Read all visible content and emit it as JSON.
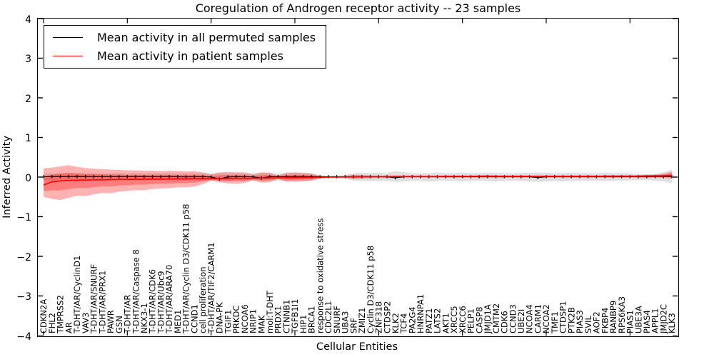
{
  "figure": {
    "title": "Coregulation of Androgen receptor activity -- 23 samples",
    "xlabel": "Cellular Entities",
    "ylabel": "Inferred Activity",
    "legend": {
      "permuted": {
        "label": "Mean activity in all permuted samples",
        "color": "#000000"
      },
      "patient": {
        "label": "Mean activity in patient samples",
        "color": "#ff0000"
      }
    }
  },
  "chart_data": {
    "type": "line",
    "title": "Coregulation of Androgen receptor activity -- 23 samples",
    "xlabel": "Cellular Entities",
    "ylabel": "Inferred Activity",
    "ylim": [
      -4,
      4
    ],
    "yticks": [
      -4,
      -3,
      -2,
      -1,
      0,
      1,
      2,
      3,
      4
    ],
    "grid": false,
    "legend_position": "upper left",
    "band_colors": {
      "permuted": "rgba(110,110,110,0.22)",
      "patient": "rgba(255,0,0,0.30)"
    },
    "categories": [
      "CDKN2A",
      "FHL2",
      "TMPRSS2",
      "AR",
      "T-DHT/AR/CyclinD1",
      "VAV3",
      "T-DHT/AR/SNURF",
      "T-DHT/AR/PRX1",
      "PAWR",
      "GSN",
      "T-DHT/AR",
      "T-DHT/AR/Caspase 8",
      "NKX3-1",
      "T-DHT/AR/CDK6",
      "T-DHT/AR/Ubc9",
      "T-DHT/AR/ARA70",
      "MED1",
      "T-DHT/AR/Cyclin D3/CDK11 p58",
      "CCND1",
      "cell proliferation",
      "T-DHT/AR/TIF2/CARM1",
      "DNA-PK",
      "TGIF1",
      "PRKDC",
      "NCOA6",
      "NRIP1",
      "MAK",
      "mol:T-DHT",
      "PRDX1",
      "CTNNB1",
      "TGFB1I1",
      "HIP1",
      "BRCA1",
      "response to oxidative stress",
      "CDC2L1",
      "SNURF",
      "UBA3",
      "SRF",
      "ZMIZ1",
      "Cyclin D3/CDK11 p58",
      "ZNF318",
      "CTDSP2",
      "KLK2",
      "TCF4",
      "PA2G4",
      "HNRNPA1",
      "PATZ1",
      "LATS2",
      "AKT1",
      "XRCC5",
      "XRCC6",
      "PELP1",
      "CASP8",
      "JMJD1A",
      "CMTM2",
      "CDK6",
      "CCND3",
      "UBE2I",
      "NCOA4",
      "CARM1",
      "NCOA2",
      "TMF1",
      "CTDSP1",
      "PTK2B",
      "PIAS3",
      "SVIL",
      "AOF2",
      "FKBP4",
      "RANBP9",
      "RPS6KA3",
      "PIAS1",
      "UBE3A",
      "PIAS4",
      "APPL1",
      "JMJD2C",
      "KLK3"
    ],
    "series": [
      {
        "name": "Mean activity in all permuted samples",
        "color": "#000000",
        "values": [
          0.01,
          0.012,
          0.012,
          0.012,
          0.015,
          0.012,
          0.012,
          0.01,
          0.012,
          0.01,
          0.012,
          0.01,
          0.012,
          0.01,
          0.01,
          0.012,
          0.01,
          0.008,
          0.01,
          0.012,
          0.005,
          -0.05,
          0.005,
          0.012,
          0.01,
          0.008,
          -0.025,
          0.01,
          0.012,
          0.01,
          0.01,
          0.012,
          0.01,
          0.008,
          0.01,
          0.01,
          0.012,
          0.01,
          0.01,
          0.012,
          0.01,
          0.01,
          -0.02,
          0.01,
          0.012,
          0.01,
          0.01,
          0.012,
          0.01,
          0.01,
          0.012,
          0.01,
          0.01,
          0.012,
          0.01,
          0.01,
          0.012,
          0.01,
          0.01,
          -0.015,
          0.01,
          0.012,
          0.01,
          0.01,
          0.012,
          0.01,
          0.01,
          0.012,
          0.01,
          0.01,
          0.012,
          0.01,
          0.01,
          0.012,
          0.01,
          0.01
        ],
        "band_upper": [
          0.1,
          0.09,
          0.1,
          0.09,
          0.1,
          0.09,
          0.1,
          0.09,
          0.09,
          0.1,
          0.09,
          0.1,
          0.09,
          0.1,
          0.09,
          0.1,
          0.09,
          0.1,
          0.09,
          0.1,
          0.08,
          0.1,
          0.09,
          0.1,
          0.09,
          0.1,
          0.11,
          0.1,
          0.09,
          0.1,
          0.11,
          0.1,
          0.09,
          0.05,
          0.02,
          0.02,
          0.04,
          0.1,
          0.11,
          0.1,
          0.11,
          0.1,
          0.15,
          0.12,
          0.1,
          0.09,
          0.1,
          0.11,
          0.1,
          0.1,
          0.11,
          0.1,
          0.1,
          0.11,
          0.1,
          0.1,
          0.09,
          0.1,
          0.11,
          0.12,
          0.11,
          0.1,
          0.1,
          0.11,
          0.1,
          0.1,
          0.09,
          0.11,
          0.1,
          0.1,
          0.09,
          0.08,
          0.07,
          0.08,
          0.12,
          0.19
        ],
        "band_lower": [
          -0.08,
          -0.09,
          -0.08,
          -0.09,
          -0.09,
          -0.08,
          -0.09,
          -0.08,
          -0.09,
          -0.08,
          -0.09,
          -0.09,
          -0.08,
          -0.09,
          -0.09,
          -0.08,
          -0.09,
          -0.09,
          -0.08,
          -0.09,
          -0.09,
          -0.1,
          -0.09,
          -0.08,
          -0.09,
          -0.09,
          -0.1,
          -0.09,
          -0.09,
          -0.1,
          -0.09,
          -0.1,
          -0.09,
          -0.05,
          -0.02,
          -0.02,
          -0.04,
          -0.09,
          -0.1,
          -0.1,
          -0.09,
          -0.1,
          -0.12,
          -0.11,
          -0.1,
          -0.1,
          -0.11,
          -0.1,
          -0.09,
          -0.1,
          -0.11,
          -0.1,
          -0.09,
          -0.1,
          -0.11,
          -0.1,
          -0.09,
          -0.1,
          -0.11,
          -0.12,
          -0.11,
          -0.1,
          -0.11,
          -0.1,
          -0.1,
          -0.09,
          -0.1,
          -0.1,
          -0.1,
          -0.09,
          -0.08,
          -0.08,
          -0.07,
          -0.09,
          -0.1,
          -0.16
        ]
      },
      {
        "name": "Mean activity in patient samples",
        "color": "#ff0000",
        "values": [
          -0.2,
          -0.12,
          -0.095,
          -0.085,
          -0.08,
          -0.075,
          -0.07,
          -0.07,
          -0.065,
          -0.06,
          -0.06,
          -0.055,
          -0.055,
          -0.05,
          -0.05,
          -0.05,
          -0.045,
          -0.045,
          -0.04,
          -0.04,
          -0.04,
          -0.04,
          -0.035,
          -0.03,
          -0.03,
          -0.03,
          -0.025,
          -0.02,
          -0.02,
          -0.015,
          -0.015,
          -0.01,
          -0.01,
          -0.005,
          0.0,
          0.0,
          0.005,
          0.005,
          0.01,
          0.01,
          0.01,
          0.01,
          0.015,
          0.015,
          0.015,
          0.015,
          0.015,
          0.015,
          0.02,
          0.02,
          0.02,
          0.02,
          0.025,
          0.025,
          0.02,
          0.02,
          0.02,
          0.02,
          0.02,
          0.02,
          0.02,
          0.02,
          0.02,
          0.02,
          0.02,
          0.02,
          0.02,
          0.025,
          0.025,
          0.025,
          0.025,
          0.025,
          0.03,
          0.03,
          0.035,
          0.045
        ],
        "band_upper": [
          0.22,
          0.24,
          0.27,
          0.3,
          0.26,
          0.23,
          0.21,
          0.2,
          0.19,
          0.18,
          0.17,
          0.17,
          0.16,
          0.16,
          0.15,
          0.16,
          0.15,
          0.14,
          0.15,
          0.12,
          0.07,
          0.12,
          0.13,
          0.12,
          0.12,
          0.06,
          0.12,
          0.11,
          0.04,
          0.11,
          0.12,
          0.11,
          0.09,
          0.03,
          0.015,
          0.015,
          0.025,
          0.06,
          0.05,
          0.04,
          0.03,
          0.035,
          0.04,
          0.03,
          0.035,
          0.03,
          0.03,
          0.035,
          0.03,
          0.03,
          0.035,
          0.03,
          0.04,
          0.05,
          0.04,
          0.04,
          0.035,
          0.04,
          0.035,
          0.04,
          0.035,
          0.04,
          0.035,
          0.04,
          0.035,
          0.04,
          0.035,
          0.04,
          0.045,
          0.04,
          0.04,
          0.045,
          0.05,
          0.06,
          0.08,
          0.13
        ],
        "band_lower": [
          -0.5,
          -0.55,
          -0.58,
          -0.52,
          -0.47,
          -0.48,
          -0.44,
          -0.4,
          -0.41,
          -0.37,
          -0.35,
          -0.33,
          -0.33,
          -0.3,
          -0.29,
          -0.28,
          -0.26,
          -0.26,
          -0.24,
          -0.18,
          -0.09,
          -0.13,
          -0.16,
          -0.17,
          -0.15,
          -0.08,
          -0.14,
          -0.13,
          -0.05,
          -0.12,
          -0.12,
          -0.11,
          -0.09,
          -0.03,
          -0.015,
          -0.015,
          -0.02,
          -0.05,
          -0.04,
          -0.03,
          -0.02,
          -0.025,
          -0.02,
          -0.02,
          -0.02,
          -0.015,
          -0.02,
          -0.02,
          -0.015,
          -0.02,
          -0.02,
          -0.015,
          -0.02,
          -0.02,
          -0.015,
          -0.02,
          -0.015,
          -0.02,
          -0.015,
          -0.02,
          -0.02,
          -0.015,
          -0.02,
          -0.02,
          -0.015,
          -0.02,
          -0.02,
          -0.015,
          -0.02,
          -0.02,
          -0.015,
          -0.02,
          -0.02,
          -0.015,
          -0.02,
          -0.04
        ]
      }
    ]
  }
}
